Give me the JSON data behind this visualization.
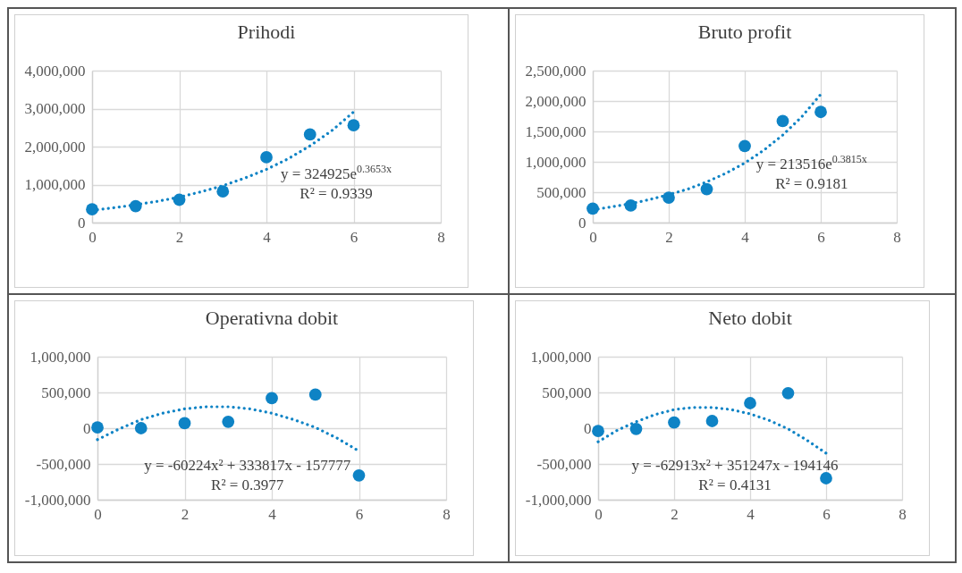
{
  "chart_data": [
    {
      "type": "scatter",
      "title": "Prihodi",
      "x": [
        0,
        1,
        2,
        3,
        4,
        5,
        6
      ],
      "marker": "circle",
      "grid": true,
      "xlim": [
        0,
        8
      ],
      "xticks": [
        0,
        2,
        4,
        6,
        8
      ],
      "ylim": [
        0,
        4000000
      ],
      "yticks": [
        {
          "value": 0,
          "label": "0"
        },
        {
          "value": 1000000,
          "label": "1,000,000"
        },
        {
          "value": 2000000,
          "label": "2,000,000"
        },
        {
          "value": 3000000,
          "label": "3,000,000"
        },
        {
          "value": 4000000,
          "label": "4,000,000"
        }
      ],
      "series": [
        {
          "color": "#0e83c5",
          "values": [
            350000,
            430000,
            600000,
            820000,
            1720000,
            2320000,
            2560000
          ]
        },
        {
          "type": "line",
          "marker": "none",
          "color": "#0e83c5",
          "line_style": "dotted",
          "x": [
            0,
            0.5,
            1,
            1.5,
            2,
            2.5,
            3,
            3.5,
            4,
            4.5,
            5,
            5.5,
            6
          ],
          "values": [
            320000,
            390000,
            470000,
            560000,
            670000,
            810000,
            970000,
            1170000,
            1400000,
            1680000,
            2020000,
            2420000,
            2910000
          ]
        }
      ],
      "annotations": [
        "y = 324925e$^{0.3653x}$",
        "R² = 0.9339"
      ]
    },
    {
      "type": "scatter",
      "title": "Bruto profit",
      "x": [
        0,
        1,
        2,
        3,
        4,
        5,
        6
      ],
      "marker": "circle",
      "grid": true,
      "xlim": [
        0,
        8
      ],
      "xticks": [
        0,
        2,
        4,
        6,
        8
      ],
      "ylim": [
        0,
        2500000
      ],
      "yticks": [
        {
          "value": 0,
          "label": "0"
        },
        {
          "value": 500000,
          "label": "500,000"
        },
        {
          "value": 1000000,
          "label": "1,000,000"
        },
        {
          "value": 1500000,
          "label": "1,500,000"
        },
        {
          "value": 2000000,
          "label": "2,000,000"
        },
        {
          "value": 2500000,
          "label": "2,500,000"
        }
      ],
      "series": [
        {
          "color": "#0e83c5",
          "values": [
            230000,
            280000,
            410000,
            550000,
            1260000,
            1670000,
            1820000
          ]
        },
        {
          "type": "line",
          "color": "#0e83c5",
          "line_style": "dotted",
          "x": [
            0,
            0.5,
            1,
            1.5,
            2,
            2.5,
            3,
            3.5,
            4,
            4.5,
            5,
            5.5,
            6
          ],
          "marker": "none",
          "values": [
            210000,
            260000,
            310000,
            380000,
            460000,
            550000,
            670000,
            810000,
            980000,
            1190000,
            1440000,
            1740000,
            2110000
          ]
        }
      ],
      "annotations": [
        "y = 213516e$^{0.3815x}$",
        "R² = 0.9181"
      ]
    },
    {
      "type": "scatter",
      "title": "Operativna dobit",
      "x": [
        0,
        1,
        2,
        3,
        4,
        5,
        6
      ],
      "marker": "circle",
      "grid": true,
      "xlim": [
        0,
        8
      ],
      "xticks": [
        0,
        2,
        4,
        6,
        8
      ],
      "ylim": [
        -1000000,
        1000000
      ],
      "yticks": [
        {
          "value": -1000000,
          "label": "-1,000,000"
        },
        {
          "value": -500000,
          "label": "-500,000"
        },
        {
          "value": 0,
          "label": "0"
        },
        {
          "value": 500000,
          "label": "500,000"
        },
        {
          "value": 1000000,
          "label": "1,000,000"
        }
      ],
      "series": [
        {
          "color": "#0e83c5",
          "values": [
            10000,
            0,
            70000,
            90000,
            420000,
            470000,
            -660000
          ]
        },
        {
          "type": "line",
          "color": "#0e83c5",
          "line_style": "dotted",
          "x": [
            0,
            0.5,
            1,
            1.5,
            2,
            2.5,
            3,
            3.5,
            4,
            4.5,
            5,
            5.5,
            6
          ],
          "marker": "none",
          "values": [
            -160000,
            -10000,
            120000,
            210000,
            270000,
            300000,
            300000,
            270000,
            210000,
            120000,
            10000,
            -140000,
            -320000
          ]
        }
      ],
      "annotations": [
        "y = -60224x² + 333817x - 157777",
        "R² = 0.3977"
      ]
    },
    {
      "type": "scatter",
      "title": "Neto dobit",
      "x": [
        0,
        1,
        2,
        3,
        4,
        5,
        6
      ],
      "marker": "circle",
      "grid": true,
      "xlim": [
        0,
        8
      ],
      "xticks": [
        0,
        2,
        4,
        6,
        8
      ],
      "ylim": [
        -1000000,
        1000000
      ],
      "yticks": [
        {
          "value": -1000000,
          "label": "-1,000,000"
        },
        {
          "value": -500000,
          "label": "-500,000"
        },
        {
          "value": 0,
          "label": "0"
        },
        {
          "value": 500000,
          "label": "500,000"
        },
        {
          "value": 1000000,
          "label": "1,000,000"
        }
      ],
      "series": [
        {
          "color": "#0e83c5",
          "values": [
            -40000,
            -10000,
            80000,
            100000,
            350000,
            490000,
            -700000
          ]
        },
        {
          "type": "line",
          "color": "#0e83c5",
          "line_style": "dotted",
          "x": [
            0,
            0.5,
            1,
            1.5,
            2,
            2.5,
            3,
            3.5,
            4,
            4.5,
            5,
            5.5,
            6
          ],
          "marker": "none",
          "values": [
            -190000,
            -30000,
            90000,
            190000,
            260000,
            290000,
            290000,
            260000,
            200000,
            110000,
            -10000,
            -170000,
            -350000
          ]
        }
      ],
      "annotations": [
        "y = -62913x² + 351247x - 194146",
        "R² = 0.4131"
      ]
    }
  ]
}
